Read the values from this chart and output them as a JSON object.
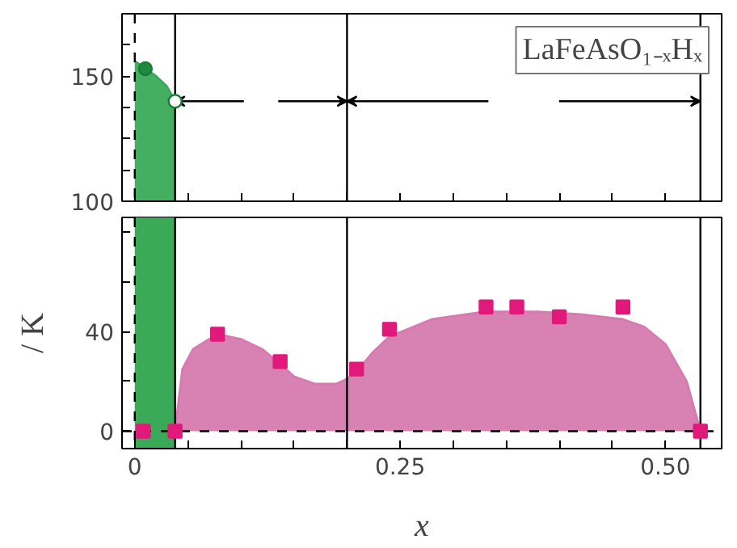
{
  "chart_data": [
    {
      "type": "area",
      "series": [
        {
          "color": "#3aaa58",
          "x": [
            0,
            0.01,
            0.02,
            0.03,
            0.038
          ],
          "values": [
            156,
            153,
            150,
            146,
            140
          ]
        },
        {
          "type": "scatter",
          "marker": "circle",
          "color": "#1e7a3a",
          "colors": [
            "#1e8a3c",
            "#ffffff"
          ],
          "x": [
            0.01,
            0.038
          ],
          "values": [
            153,
            140
          ]
        }
      ],
      "xlim": [
        -0.012,
        0.553
      ],
      "ylim": [
        100,
        175
      ],
      "xticks": [
        {
          "value": 0,
          "label": null
        },
        {
          "value": 0.05,
          "label": null
        },
        {
          "value": 0.1,
          "label": null
        },
        {
          "value": 0.15,
          "label": null
        },
        {
          "value": 0.2,
          "label": null
        },
        {
          "value": 0.25,
          "label": null
        },
        {
          "value": 0.3,
          "label": null
        },
        {
          "value": 0.35,
          "label": null
        },
        {
          "value": 0.4,
          "label": null
        },
        {
          "value": 0.45,
          "label": null
        },
        {
          "value": 0.5,
          "label": null
        }
      ],
      "yticks": [
        100,
        {
          "value": 112.5,
          "label": null
        },
        {
          "value": 125,
          "label": null
        },
        {
          "value": 137.5,
          "label": null
        },
        150,
        {
          "value": 162.5,
          "label": null
        }
      ],
      "tick_labels": "y",
      "ref_lines": [
        {
          "axis": "x",
          "value": 0,
          "line_style": "dashed"
        },
        {
          "axis": "x",
          "value": 0.038
        },
        {
          "axis": "x",
          "value": 0.2
        },
        {
          "axis": "x",
          "value": 0.533
        }
      ],
      "annotations": [
        "LaFeAsO₁₋ₓHₓ"
      ]
    },
    {
      "type": "area",
      "series": [
        {
          "color": "#d67bb0",
          "x": [
            0.038,
            0.045,
            0.055,
            0.078,
            0.1,
            0.12,
            0.137,
            0.15,
            0.17,
            0.19,
            0.2,
            0.209,
            0.225,
            0.24,
            0.28,
            0.33,
            0.38,
            0.42,
            0.46,
            0.48,
            0.5,
            0.52,
            0.533
          ],
          "values": [
            0,
            25,
            33,
            39,
            37,
            33,
            27,
            22,
            19,
            19,
            21,
            24,
            32,
            38,
            45,
            48,
            48,
            47,
            45,
            42,
            35,
            20,
            0
          ]
        },
        {
          "type": "scatter",
          "marker": "square",
          "color": "#e0197a",
          "x": [
            0.008,
            0.038,
            0.078,
            0.137,
            0.209,
            0.24,
            0.331,
            0.36,
            0.4,
            0.46,
            0.533
          ],
          "values": [
            0,
            0,
            39,
            28,
            25,
            41,
            50,
            50,
            46,
            50,
            0
          ]
        }
      ],
      "xlim": [
        -0.012,
        0.553
      ],
      "ylim": [
        -7,
        86
      ],
      "xticks": [
        0,
        {
          "value": 0.05,
          "label": null
        },
        {
          "value": 0.1,
          "label": null
        },
        {
          "value": 0.15,
          "label": null
        },
        {
          "value": 0.2,
          "label": null
        },
        0.25,
        {
          "value": 0.3,
          "label": null
        },
        {
          "value": 0.35,
          "label": null
        },
        {
          "value": 0.4,
          "label": null
        },
        {
          "value": 0.45,
          "label": null
        },
        {
          "value": 0.5,
          "label": "0.50"
        }
      ],
      "yticks": [
        0,
        {
          "value": 20,
          "label": null
        },
        40,
        {
          "value": 60,
          "label": null
        },
        {
          "value": 80,
          "label": null
        }
      ],
      "xlabel": "x",
      "ylabel": "/ K",
      "bands": [
        {
          "axis": "x",
          "from": 0,
          "to": 0.038,
          "color": "#3aaa58"
        }
      ],
      "ref_lines": [
        {
          "axis": "x",
          "value": 0,
          "line_style": "dashed"
        },
        {
          "axis": "x",
          "value": 0.038
        },
        {
          "axis": "x",
          "value": 0.2
        },
        {
          "axis": "x",
          "value": 0.533
        },
        {
          "axis": "y",
          "value": 0,
          "line_style": "dashed"
        }
      ]
    }
  ]
}
